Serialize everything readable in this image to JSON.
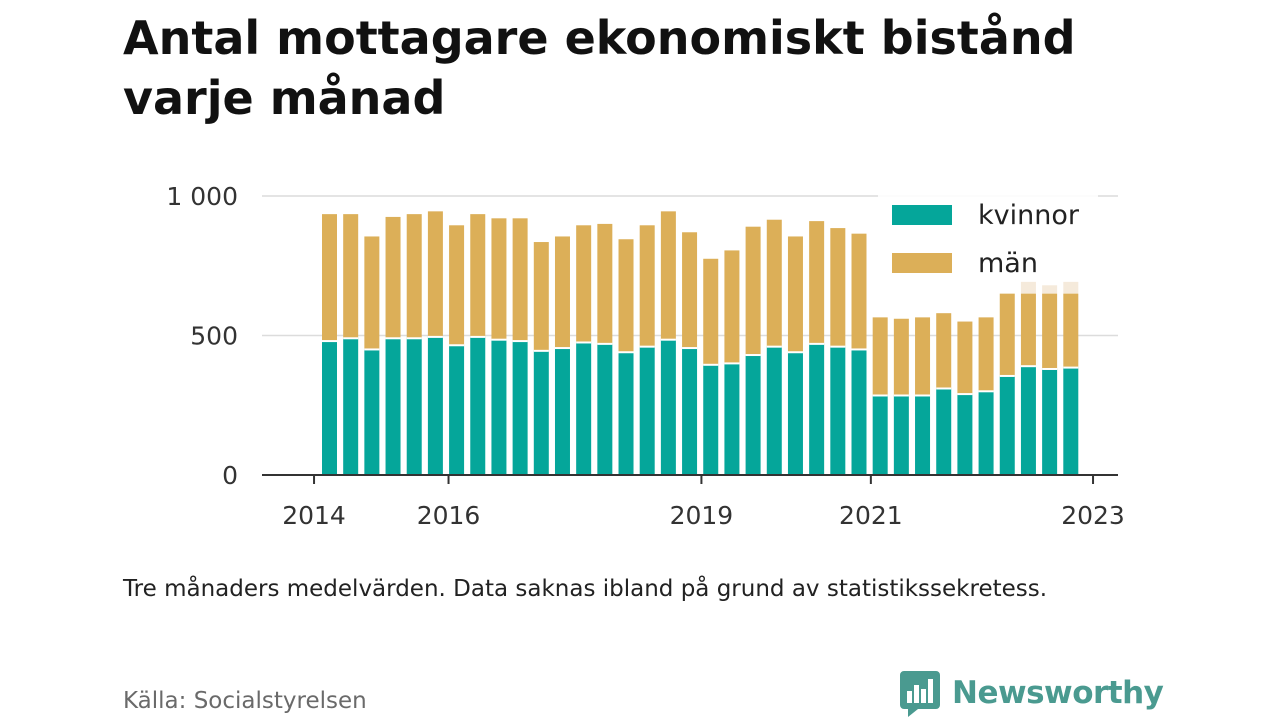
{
  "title": "Antal mottagare ekonomiskt bistånd varje månad",
  "note": "Tre månaders medelvärden. Data saknas ibland på grund av statistikssekretess.",
  "source": "Källa: Socialstyrelsen",
  "brand": {
    "name": "Newsworthy",
    "icon": "bar-chart-speech-bubble-icon"
  },
  "colors": {
    "kvinnor": "#05a69a",
    "man": "#dcaf58",
    "faded": "#f5eadb",
    "grid": "#dcdcdc",
    "axis": "#333333"
  },
  "chart_data": {
    "type": "bar",
    "stacked": true,
    "ylim": [
      0,
      1000
    ],
    "yticks": [
      0,
      500,
      1000
    ],
    "ytick_labels": [
      "0",
      "500",
      "1 000"
    ],
    "xtick_labels": [
      "2014",
      "2016",
      "2019",
      "2021",
      "2023"
    ],
    "grid": true,
    "legend_placement": "top-right",
    "categories": [
      "2014-07",
      "2014-10",
      "2015-01",
      "2015-04",
      "2015-07",
      "2015-10",
      "2016-01",
      "2016-04",
      "2016-07",
      "2016-10",
      "2017-01",
      "2017-04",
      "2017-07",
      "2017-10",
      "2018-01",
      "2018-04",
      "2018-07",
      "2018-10",
      "2019-01",
      "2019-04",
      "2019-07",
      "2019-10",
      "2020-01",
      "2020-04",
      "2020-07",
      "2020-10",
      "2021-01",
      "2021-04",
      "2021-07",
      "2021-10",
      "2022-01",
      "2022-04",
      "2022-07",
      "2022-10",
      "2023-01",
      "2023-04"
    ],
    "series": [
      {
        "name": "kvinnor",
        "values": [
          480,
          490,
          450,
          490,
          490,
          495,
          465,
          495,
          485,
          480,
          445,
          455,
          475,
          470,
          440,
          460,
          485,
          455,
          395,
          400,
          430,
          460,
          440,
          470,
          460,
          450,
          285,
          285,
          285,
          310,
          290,
          300,
          355,
          390,
          380,
          385
        ]
      },
      {
        "name": "män",
        "values": [
          455,
          445,
          405,
          435,
          445,
          450,
          430,
          440,
          435,
          440,
          390,
          400,
          420,
          430,
          405,
          435,
          460,
          415,
          380,
          405,
          460,
          455,
          415,
          440,
          425,
          415,
          280,
          275,
          280,
          270,
          260,
          265,
          295,
          260,
          270,
          265
        ]
      }
    ],
    "faded_extra": [
      0,
      0,
      0,
      0,
      0,
      0,
      0,
      0,
      0,
      0,
      0,
      0,
      0,
      0,
      0,
      0,
      0,
      0,
      0,
      0,
      0,
      0,
      0,
      0,
      0,
      0,
      0,
      0,
      0,
      0,
      0,
      0,
      0,
      45,
      30,
      45
    ]
  }
}
